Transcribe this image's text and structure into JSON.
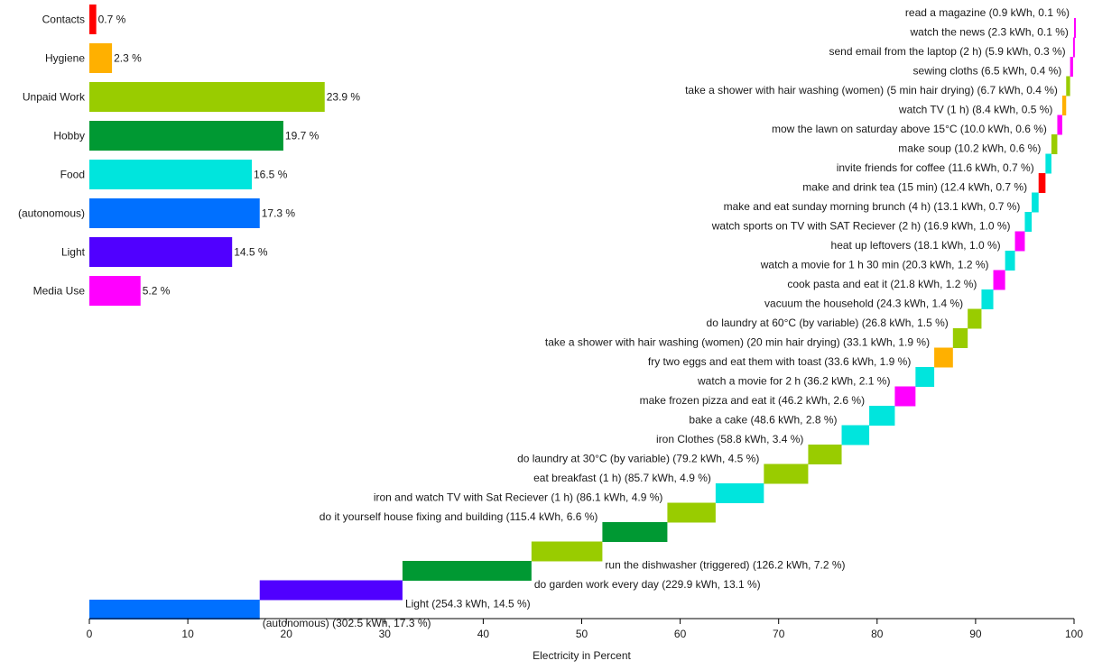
{
  "chart_data": [
    {
      "type": "bar",
      "orientation": "horizontal",
      "categories": [
        "Contacts",
        "Hygiene",
        "Unpaid Work",
        "Hobby",
        "Food",
        "(autonomous)",
        "Light",
        "Media Use"
      ],
      "values": [
        0.7,
        2.3,
        23.9,
        19.7,
        16.5,
        17.3,
        14.5,
        5.2
      ],
      "value_labels": [
        "0.7 %",
        "2.3 %",
        "23.9 %",
        "19.7 %",
        "16.5 %",
        "17.3 %",
        "14.5 %",
        "5.2 %"
      ],
      "colors": [
        "#ff0000",
        "#ffb000",
        "#99cc00",
        "#009933",
        "#00e5dd",
        "#0070ff",
        "#5000ff",
        "#ff00ff"
      ],
      "xlim": [
        0,
        100
      ]
    },
    {
      "type": "waterfall",
      "xlabel": "Electricity in Percent",
      "xlim": [
        0,
        100
      ],
      "xticks": [
        "0",
        "10",
        "20",
        "30",
        "40",
        "50",
        "60",
        "70",
        "80",
        "90",
        "100"
      ],
      "items": [
        {
          "label": "(autonomous) (302.5 kWh, 17.3 %)",
          "kwh": 302.5,
          "percent": 17.3,
          "category": "(autonomous)",
          "color": "#0070ff"
        },
        {
          "label": "Light (254.3 kWh, 14.5 %)",
          "kwh": 254.3,
          "percent": 14.5,
          "category": "Light",
          "color": "#5000ff"
        },
        {
          "label": "do garden work every day (229.9 kWh, 13.1 %)",
          "kwh": 229.9,
          "percent": 13.1,
          "category": "Hobby",
          "color": "#009933"
        },
        {
          "label": "run the dishwasher (triggered) (126.2 kWh, 7.2 %)",
          "kwh": 126.2,
          "percent": 7.2,
          "category": "Unpaid Work",
          "color": "#99cc00"
        },
        {
          "label": "do it yourself house fixing and building (115.4 kWh, 6.6 %)",
          "kwh": 115.4,
          "percent": 6.6,
          "category": "Hobby",
          "color": "#009933"
        },
        {
          "label": "iron and watch TV with Sat Reciever (1 h) (86.1 kWh, 4.9 %)",
          "kwh": 86.1,
          "percent": 4.9,
          "category": "Unpaid Work",
          "color": "#99cc00"
        },
        {
          "label": "eat breakfast (1 h) (85.7 kWh, 4.9 %)",
          "kwh": 85.7,
          "percent": 4.9,
          "category": "Food",
          "color": "#00e5dd"
        },
        {
          "label": "do laundry at 30°C (by variable) (79.2 kWh, 4.5 %)",
          "kwh": 79.2,
          "percent": 4.5,
          "category": "Unpaid Work",
          "color": "#99cc00"
        },
        {
          "label": "iron Clothes (58.8 kWh, 3.4 %)",
          "kwh": 58.8,
          "percent": 3.4,
          "category": "Unpaid Work",
          "color": "#99cc00"
        },
        {
          "label": "bake a cake (48.6 kWh, 2.8 %)",
          "kwh": 48.6,
          "percent": 2.8,
          "category": "Food",
          "color": "#00e5dd"
        },
        {
          "label": "make frozen pizza and eat it (46.2 kWh, 2.6 %)",
          "kwh": 46.2,
          "percent": 2.6,
          "category": "Food",
          "color": "#00e5dd"
        },
        {
          "label": "watch a movie for 2 h (36.2 kWh, 2.1 %)",
          "kwh": 36.2,
          "percent": 2.1,
          "category": "Media Use",
          "color": "#ff00ff"
        },
        {
          "label": "fry two eggs and eat them with toast (33.6 kWh, 1.9 %)",
          "kwh": 33.6,
          "percent": 1.9,
          "category": "Food",
          "color": "#00e5dd"
        },
        {
          "label": "take a shower with hair washing (women) (20 min hair drying) (33.1 kWh, 1.9 %)",
          "kwh": 33.1,
          "percent": 1.9,
          "category": "Hygiene",
          "color": "#ffb000"
        },
        {
          "label": "do laundry at 60°C (by variable) (26.8 kWh, 1.5 %)",
          "kwh": 26.8,
          "percent": 1.5,
          "category": "Unpaid Work",
          "color": "#99cc00"
        },
        {
          "label": "vacuum the household (24.3 kWh, 1.4 %)",
          "kwh": 24.3,
          "percent": 1.4,
          "category": "Unpaid Work",
          "color": "#99cc00"
        },
        {
          "label": "cook pasta and eat it (21.8 kWh, 1.2 %)",
          "kwh": 21.8,
          "percent": 1.2,
          "category": "Food",
          "color": "#00e5dd"
        },
        {
          "label": "watch a movie for 1 h 30 min (20.3 kWh, 1.2 %)",
          "kwh": 20.3,
          "percent": 1.2,
          "category": "Media Use",
          "color": "#ff00ff"
        },
        {
          "label": "heat up leftovers (18.1 kWh, 1.0 %)",
          "kwh": 18.1,
          "percent": 1.0,
          "category": "Food",
          "color": "#00e5dd"
        },
        {
          "label": "watch sports on TV with SAT Reciever (2 h) (16.9 kWh, 1.0 %)",
          "kwh": 16.9,
          "percent": 1.0,
          "category": "Media Use",
          "color": "#ff00ff"
        },
        {
          "label": "make and eat sunday morning brunch (4 h) (13.1 kWh, 0.7 %)",
          "kwh": 13.1,
          "percent": 0.7,
          "category": "Food",
          "color": "#00e5dd"
        },
        {
          "label": "make and drink tea (15 min) (12.4 kWh, 0.7 %)",
          "kwh": 12.4,
          "percent": 0.7,
          "category": "Food",
          "color": "#00e5dd"
        },
        {
          "label": "invite friends for coffee (11.6 kWh, 0.7 %)",
          "kwh": 11.6,
          "percent": 0.7,
          "category": "Contacts",
          "color": "#ff0000"
        },
        {
          "label": "make soup (10.2 kWh, 0.6 %)",
          "kwh": 10.2,
          "percent": 0.6,
          "category": "Food",
          "color": "#00e5dd"
        },
        {
          "label": "mow the lawn on saturday above 15°C (10.0 kWh, 0.6 %)",
          "kwh": 10.0,
          "percent": 0.6,
          "category": "Unpaid Work",
          "color": "#99cc00"
        },
        {
          "label": "watch TV (1 h) (8.4 kWh, 0.5 %)",
          "kwh": 8.4,
          "percent": 0.5,
          "category": "Media Use",
          "color": "#ff00ff"
        },
        {
          "label": "take a shower with hair washing (women) (5 min hair drying) (6.7 kWh, 0.4 %)",
          "kwh": 6.7,
          "percent": 0.4,
          "category": "Hygiene",
          "color": "#ffb000"
        },
        {
          "label": "sewing cloths (6.5 kWh, 0.4 %)",
          "kwh": 6.5,
          "percent": 0.4,
          "category": "Unpaid Work",
          "color": "#99cc00"
        },
        {
          "label": "send email from the laptop (2 h) (5.9 kWh, 0.3 %)",
          "kwh": 5.9,
          "percent": 0.3,
          "category": "Media Use",
          "color": "#ff00ff"
        },
        {
          "label": "watch the news (2.3 kWh, 0.1 %)",
          "kwh": 2.3,
          "percent": 0.1,
          "category": "Media Use",
          "color": "#ff00ff"
        },
        {
          "label": "read a magazine (0.9 kWh, 0.1 %)",
          "kwh": 0.9,
          "percent": 0.1,
          "category": "Media Use",
          "color": "#ff00ff"
        }
      ]
    }
  ]
}
